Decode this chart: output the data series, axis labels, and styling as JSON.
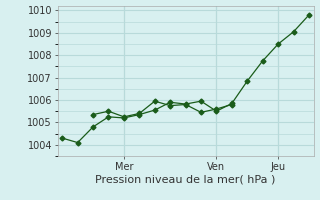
{
  "background_color": "#d8f0f0",
  "grid_color": "#b8dada",
  "line_color": "#1a5c1a",
  "marker_color": "#1a5c1a",
  "xlabel": "Pression niveau de la mer( hPa )",
  "ylim": [
    1003.5,
    1010.2
  ],
  "yticks": [
    1004,
    1005,
    1006,
    1007,
    1008,
    1009,
    1010
  ],
  "line1_x": [
    0,
    1,
    2,
    3,
    4,
    5,
    6,
    7,
    8,
    9,
    10,
    11,
    12,
    13,
    14,
    15,
    16
  ],
  "line1_y": [
    1004.3,
    1004.1,
    1004.8,
    1005.25,
    1005.2,
    1005.35,
    1005.55,
    1005.9,
    1005.82,
    1005.95,
    1005.5,
    1005.85,
    1006.85,
    1007.75,
    1008.5,
    1009.05,
    1009.8
  ],
  "line2_x": [
    2,
    3,
    4,
    5,
    6,
    7,
    8,
    9,
    10,
    11
  ],
  "line2_y": [
    1005.35,
    1005.5,
    1005.25,
    1005.4,
    1005.95,
    1005.75,
    1005.8,
    1005.45,
    1005.6,
    1005.8
  ],
  "vline_positions": [
    4,
    10,
    14
  ],
  "day_labels": [
    "Mer",
    "Ven",
    "Jeu"
  ],
  "day_positions": [
    4,
    10,
    14
  ],
  "xlabel_fontsize": 8,
  "ytick_fontsize": 7,
  "xtick_fontsize": 7
}
